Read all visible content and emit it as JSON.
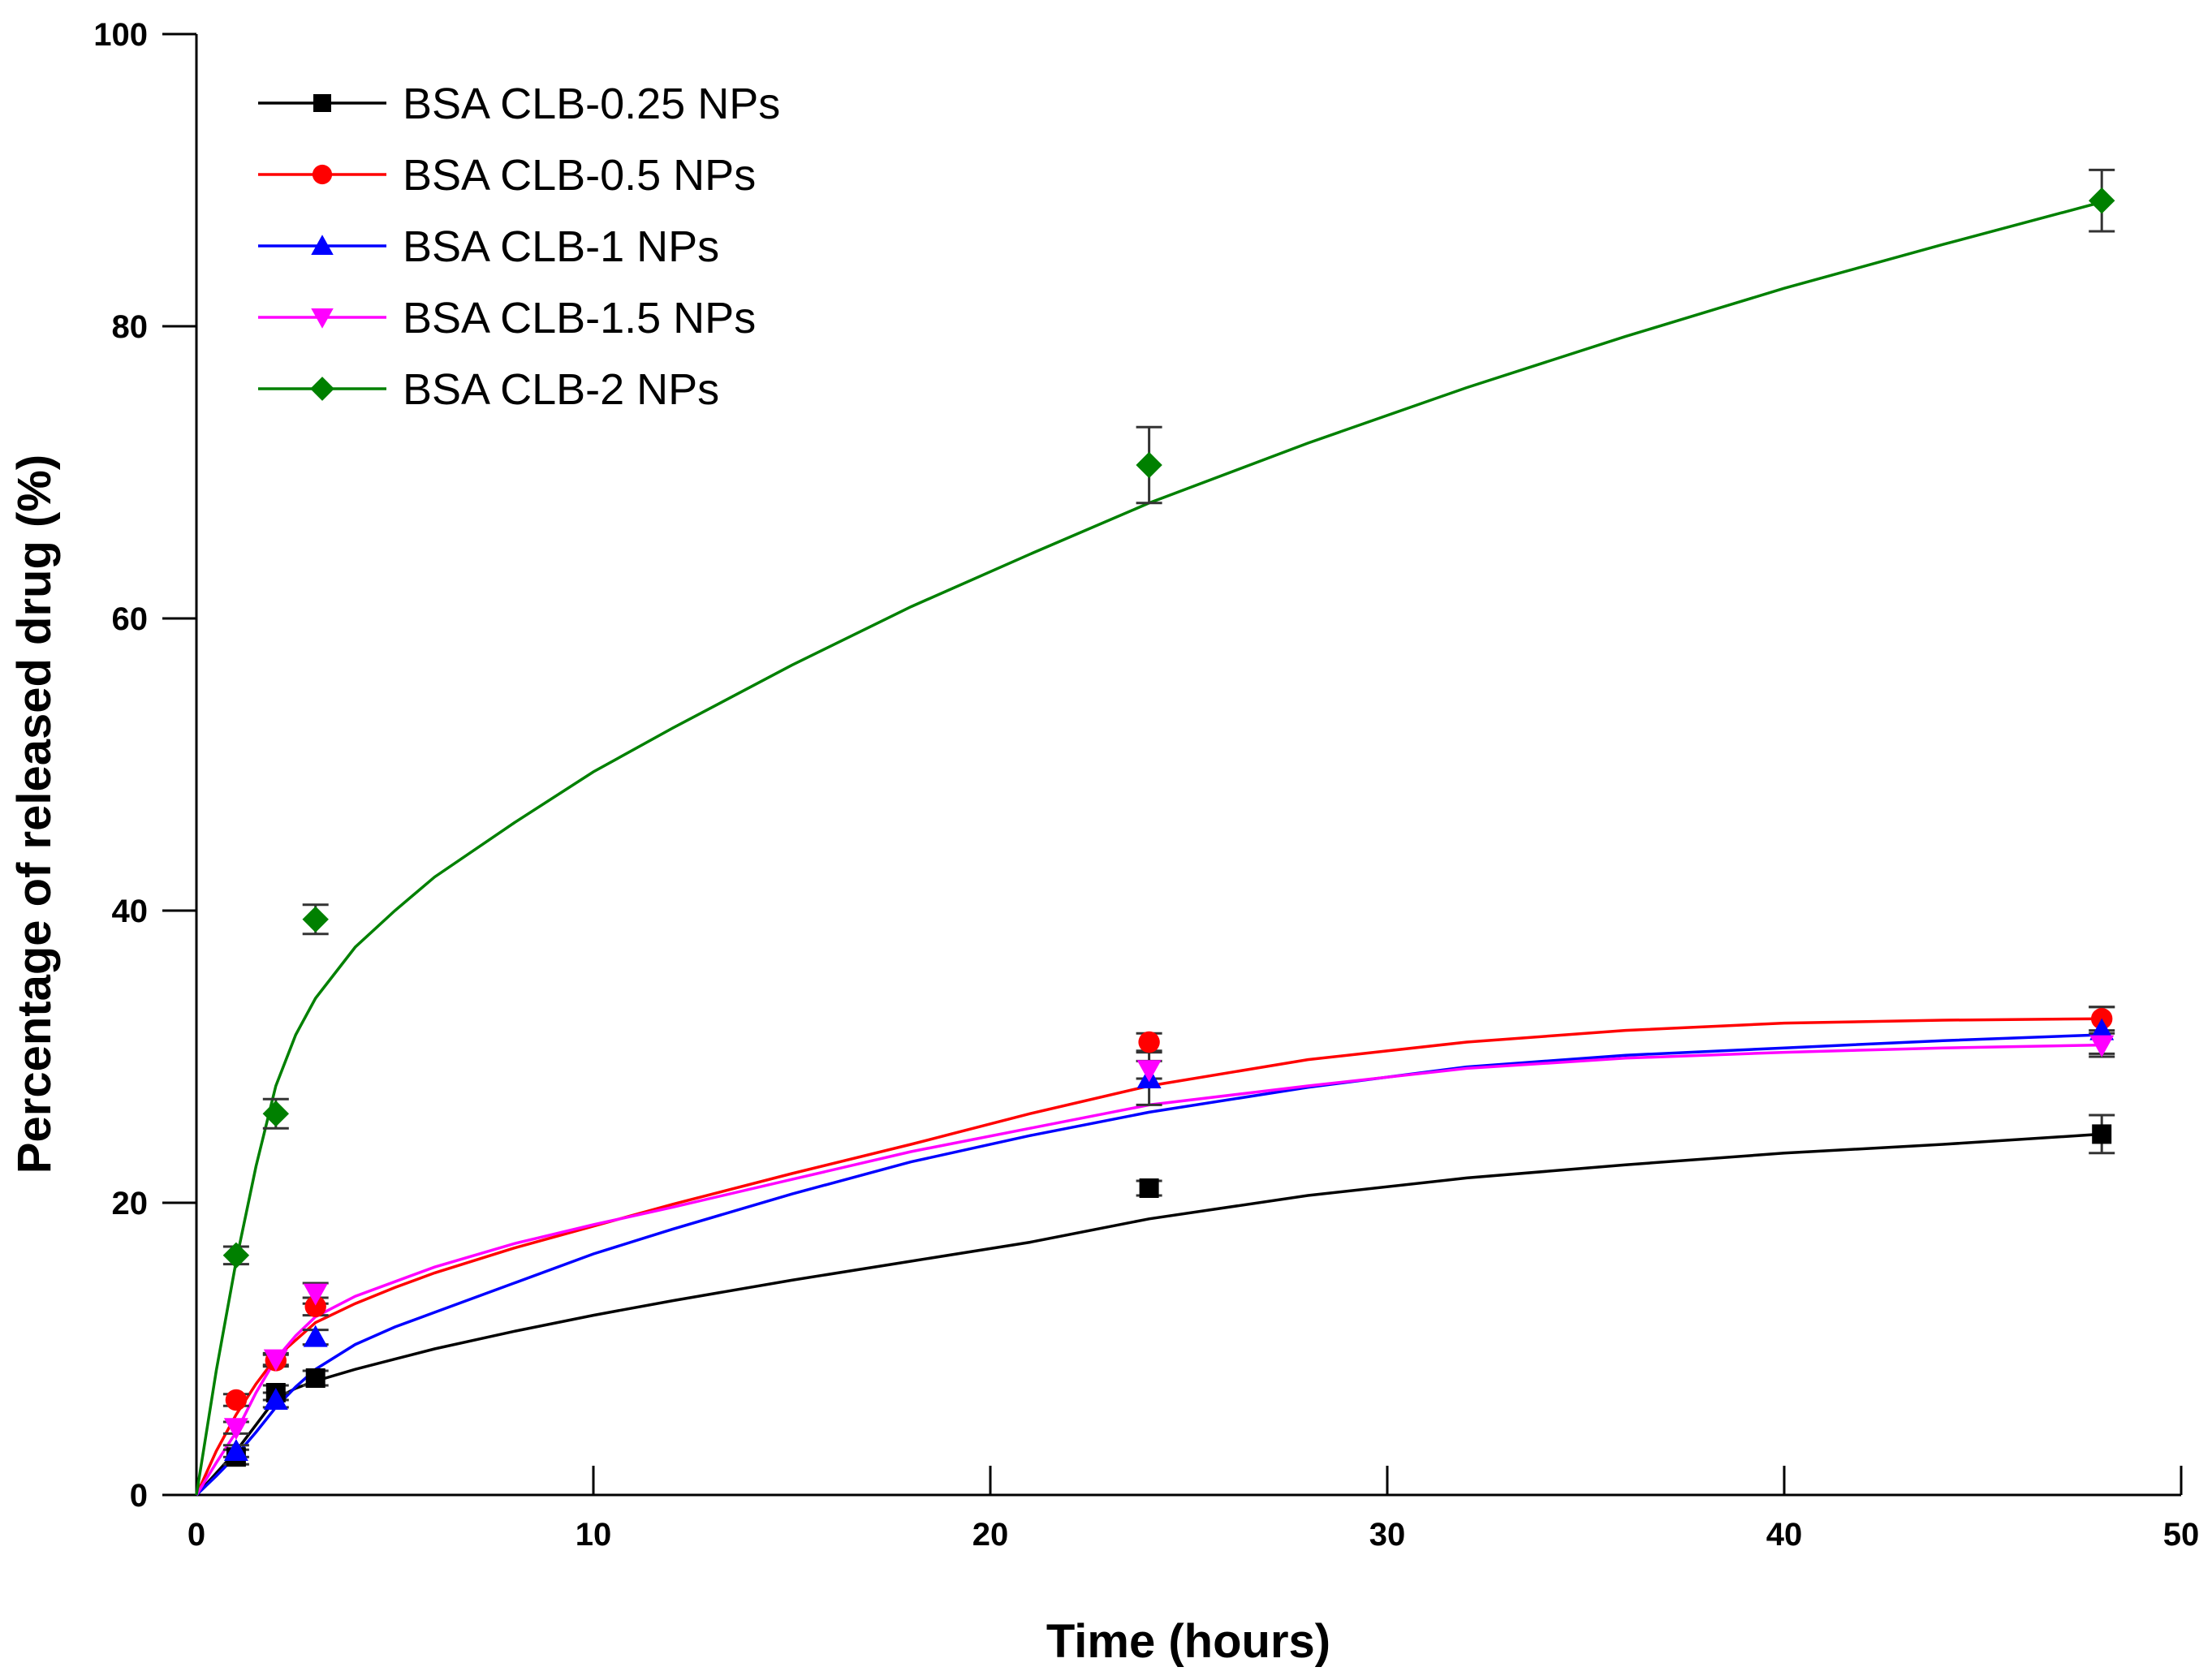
{
  "chart_data": {
    "type": "scatter",
    "title": "",
    "xlabel": "Time (hours)",
    "ylabel": "Percentage of released drug (%)",
    "xlim": [
      0,
      50
    ],
    "ylim": [
      0,
      100
    ],
    "xticks": [
      "0",
      "10",
      "20",
      "30",
      "40",
      "50"
    ],
    "yticks": [
      "0",
      "20",
      "40",
      "60",
      "80",
      "100"
    ],
    "grid": false,
    "legend_position": "top-left",
    "series": [
      {
        "name": "BSA CLB-0.25 NPs",
        "color": "#000000",
        "marker": "square",
        "x": [
          1,
          2,
          3,
          24,
          48
        ],
        "y": [
          2.6,
          7.0,
          8.0,
          21.0,
          24.7
        ],
        "err": [
          0.5,
          0.5,
          0.5,
          0.5,
          1.3
        ],
        "fit_x": [
          0,
          0.5,
          1,
          1.5,
          2,
          2.5,
          3,
          4,
          5,
          6,
          8,
          10,
          12,
          15,
          18,
          21,
          24,
          28,
          32,
          36,
          40,
          44,
          48
        ],
        "fit_y": [
          0,
          1.5,
          3.0,
          4.8,
          6.6,
          7.3,
          7.8,
          8.6,
          9.3,
          10.0,
          11.2,
          12.3,
          13.3,
          14.7,
          16.0,
          17.3,
          18.9,
          20.5,
          21.7,
          22.6,
          23.4,
          24.0,
          24.7
        ]
      },
      {
        "name": "BSA CLB-0.5 NPs",
        "color": "#ff0000",
        "marker": "circle",
        "x": [
          1,
          2,
          3,
          24,
          48
        ],
        "y": [
          6.5,
          9.2,
          12.9,
          31.0,
          32.6
        ],
        "err": [
          0.4,
          0.4,
          0.6,
          0.6,
          0.8
        ],
        "fit_x": [
          0,
          0.5,
          1,
          1.5,
          2,
          2.5,
          3,
          4,
          5,
          6,
          8,
          10,
          12,
          15,
          18,
          21,
          24,
          28,
          32,
          36,
          40,
          44,
          48
        ],
        "fit_y": [
          0,
          3.0,
          5.5,
          7.6,
          9.4,
          10.6,
          11.8,
          13.1,
          14.2,
          15.2,
          16.9,
          18.4,
          19.9,
          22.0,
          24.0,
          26.1,
          28.0,
          29.8,
          31.0,
          31.8,
          32.3,
          32.5,
          32.6
        ]
      },
      {
        "name": "BSA CLB-1 NPs",
        "color": "#0000ff",
        "marker": "triangle-up",
        "x": [
          1,
          2,
          3,
          24,
          48
        ],
        "y": [
          3.0,
          6.5,
          10.8,
          28.5,
          31.8
        ],
        "err": [
          0.4,
          0.5,
          0.5,
          1.8,
          1.6
        ],
        "fit_x": [
          0,
          0.5,
          1,
          1.5,
          2,
          2.5,
          3,
          4,
          5,
          6,
          8,
          10,
          12,
          15,
          18,
          21,
          24,
          28,
          32,
          36,
          40,
          44,
          48
        ],
        "fit_y": [
          0,
          1.3,
          2.7,
          4.3,
          6.0,
          7.4,
          8.6,
          10.3,
          11.5,
          12.5,
          14.5,
          16.5,
          18.2,
          20.6,
          22.8,
          24.6,
          26.2,
          27.9,
          29.3,
          30.1,
          30.6,
          31.1,
          31.5
        ]
      },
      {
        "name": "BSA CLB-1.5 NPs",
        "color": "#ff00ff",
        "marker": "triangle-down",
        "x": [
          1,
          2,
          3,
          24,
          48
        ],
        "y": [
          4.6,
          9.3,
          13.8,
          29.1,
          30.8
        ],
        "err": [
          0.4,
          0.4,
          0.7,
          0.6,
          0.8
        ],
        "fit_x": [
          0,
          0.5,
          1,
          1.5,
          2,
          2.5,
          3,
          4,
          5,
          6,
          8,
          10,
          12,
          15,
          18,
          21,
          24,
          28,
          32,
          36,
          40,
          44,
          48
        ],
        "fit_y": [
          0,
          2.2,
          4.3,
          7.0,
          9.3,
          10.9,
          12.2,
          13.6,
          14.6,
          15.6,
          17.2,
          18.5,
          19.7,
          21.6,
          23.5,
          25.1,
          26.7,
          28.0,
          29.2,
          29.9,
          30.3,
          30.6,
          30.8
        ]
      },
      {
        "name": "BSA CLB-2 NPs",
        "color": "#008000",
        "marker": "diamond",
        "x": [
          1,
          2,
          3,
          24,
          48
        ],
        "y": [
          16.4,
          26.1,
          39.4,
          70.5,
          88.6
        ],
        "err": [
          0.6,
          1.0,
          1.0,
          2.6,
          2.1
        ],
        "fit_x": [
          0,
          0.5,
          1,
          1.5,
          2,
          2.5,
          3,
          4,
          5,
          6,
          8,
          10,
          12,
          15,
          18,
          21,
          24,
          28,
          32,
          36,
          40,
          44,
          48
        ],
        "fit_y": [
          0,
          8.5,
          16.0,
          22.5,
          28.0,
          31.5,
          34.0,
          37.5,
          40.0,
          42.3,
          46.0,
          49.5,
          52.5,
          56.8,
          60.8,
          64.4,
          67.9,
          72.0,
          75.8,
          79.3,
          82.6,
          85.6,
          88.5
        ]
      }
    ]
  }
}
